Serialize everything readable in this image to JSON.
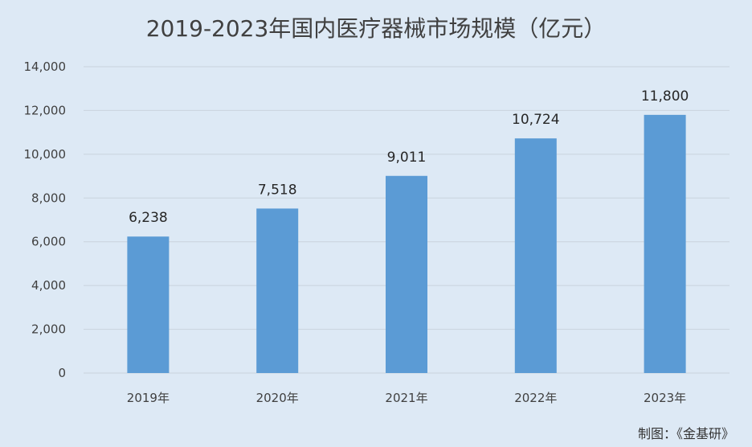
{
  "chart_data": {
    "type": "bar",
    "title": "2019-2023年国内医疗器械市场规模（亿元）",
    "categories": [
      "2019年",
      "2020年",
      "2021年",
      "2022年",
      "2023年"
    ],
    "values": [
      6238,
      7518,
      9011,
      10724,
      11800
    ],
    "data_labels": [
      "6,238",
      "7,518",
      "9,011",
      "10,724",
      "11,800"
    ],
    "ylim": [
      0,
      14000
    ],
    "yticks": [
      0,
      2000,
      4000,
      6000,
      8000,
      10000,
      12000,
      14000
    ],
    "ytick_labels": [
      "0",
      "2,000",
      "4,000",
      "6,000",
      "8,000",
      "10,000",
      "12,000",
      "14,000"
    ],
    "grid": true,
    "legend": "none",
    "bar_color": "#5b9bd5",
    "grid_color": "#c9d3dd",
    "background_color": "#dde9f5"
  },
  "footer": {
    "credit": "制图：《金基研》"
  }
}
